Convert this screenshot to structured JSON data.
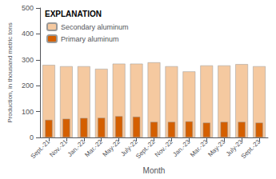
{
  "chart_data": {
    "type": "bar",
    "categories": [
      "Sept.-21",
      "Nov.-21",
      "Jan.-22",
      "Mar.-22",
      "May-22",
      "July-22",
      "Sept.-22",
      "Nov.-22",
      "Jan.-23",
      "Mar.-23",
      "May-23",
      "July-23",
      "Sept.-23"
    ],
    "series": [
      {
        "name": "Secondary aluminum",
        "color": "#F5C9A0",
        "values": [
          280,
          275,
          275,
          265,
          285,
          285,
          290,
          275,
          255,
          278,
          278,
          283,
          275
        ]
      },
      {
        "name": "Primary aluminum",
        "color": "#D45F00",
        "values": [
          68,
          72,
          75,
          76,
          82,
          80,
          60,
          60,
          62,
          57,
          60,
          60,
          57
        ]
      }
    ],
    "xlabel": "Month",
    "ylabel": "Production, in thousand metric tons",
    "ylim": [
      0,
      500
    ],
    "yticks": [
      0,
      100,
      200,
      300,
      400,
      500
    ],
    "grid": false,
    "legend": "upper left",
    "legend_title": "EXPLANATION"
  }
}
